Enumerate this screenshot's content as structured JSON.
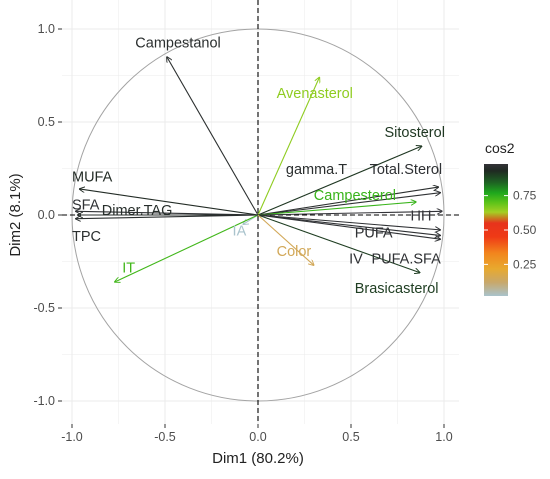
{
  "chart_data": {
    "type": "scatter",
    "subtype": "pca-variable-correlation-circle",
    "xlabel": "Dim1 (80.2%)",
    "ylabel": "Dim2 (8.1%)",
    "xlim": [
      -1.05,
      1.05
    ],
    "ylim": [
      -1.05,
      1.05
    ],
    "x_ticks": [
      "-1.0",
      "-0.5",
      "0.0",
      "0.5",
      "1.0"
    ],
    "y_ticks": [
      "-1.0",
      "-0.5",
      "0.0",
      "0.5",
      "1.0"
    ],
    "grid": true,
    "unit_circle": true,
    "legend": {
      "title": "cos2",
      "placement": "right",
      "ticks": [
        "0.75",
        "0.50",
        "0.25"
      ],
      "tick_values": [
        0.75,
        0.5,
        0.25
      ],
      "range": [
        0.02,
        0.98
      ],
      "gradient": [
        {
          "v": 0.02,
          "color": "#a9c3cc"
        },
        {
          "v": 0.12,
          "color": "#c8a86a"
        },
        {
          "v": 0.22,
          "color": "#e8a92e"
        },
        {
          "v": 0.33,
          "color": "#f2861d"
        },
        {
          "v": 0.45,
          "color": "#ef3a16"
        },
        {
          "v": 0.55,
          "color": "#e7331c"
        },
        {
          "v": 0.63,
          "color": "#a4cf24"
        },
        {
          "v": 0.7,
          "color": "#5cc319"
        },
        {
          "v": 0.77,
          "color": "#1fa81d"
        },
        {
          "v": 0.85,
          "color": "#1e5f23"
        },
        {
          "v": 0.93,
          "color": "#1f2a22"
        },
        {
          "v": 0.98,
          "color": "#333338"
        }
      ]
    },
    "variables": [
      {
        "name": "Campestanol",
        "x": -0.49,
        "y": 0.85,
        "cos2": 0.96
      },
      {
        "name": "Avenasterol",
        "x": 0.33,
        "y": 0.74,
        "cos2": 0.65
      },
      {
        "name": "Sitosterol",
        "x": 0.88,
        "y": 0.37,
        "cos2": 0.91
      },
      {
        "name": "gamma.T",
        "x": 0.97,
        "y": 0.15,
        "cos2": 0.96
      },
      {
        "name": "Total.Sterol",
        "x": 0.98,
        "y": 0.12,
        "cos2": 0.97
      },
      {
        "name": "Campesterol",
        "x": 0.85,
        "y": 0.07,
        "cos2": 0.74
      },
      {
        "name": "HH",
        "x": 0.99,
        "y": 0.02,
        "cos2": 0.98
      },
      {
        "name": "PUFA",
        "x": 0.98,
        "y": -0.08,
        "cos2": 0.97
      },
      {
        "name": "IV",
        "x": 0.98,
        "y": -0.11,
        "cos2": 0.97
      },
      {
        "name": "PUFA.SFA",
        "x": 0.98,
        "y": -0.13,
        "cos2": 0.97
      },
      {
        "name": "Brasicasterol",
        "x": 0.87,
        "y": -0.31,
        "cos2": 0.9
      },
      {
        "name": "Color",
        "x": 0.3,
        "y": -0.27,
        "cos2": 0.15
      },
      {
        "name": "IA",
        "x": -0.08,
        "y": -0.05,
        "cos2": 0.01
      },
      {
        "name": "IT",
        "x": -0.77,
        "y": -0.36,
        "cos2": 0.73
      },
      {
        "name": "MUFA",
        "x": -0.96,
        "y": 0.14,
        "cos2": 0.94
      },
      {
        "name": "SFA",
        "x": -0.98,
        "y": 0.02,
        "cos2": 0.97
      },
      {
        "name": "Dimer.TAG",
        "x": -0.97,
        "y": 0.0,
        "cos2": 0.95
      },
      {
        "name": "TPC",
        "x": -0.98,
        "y": -0.02,
        "cos2": 0.96
      }
    ],
    "labels": [
      {
        "text": "Campestanol",
        "x": -0.43,
        "y": 0.9,
        "anchor": "middle"
      },
      {
        "text": "Avenasterol",
        "x": 0.1,
        "y": 0.63,
        "anchor": "start"
      },
      {
        "text": "Sitosterol",
        "x": 0.68,
        "y": 0.42,
        "anchor": "start"
      },
      {
        "text": "gamma.T",
        "x": 0.15,
        "y": 0.22,
        "anchor": "start"
      },
      {
        "text": "Total.Sterol",
        "x": 0.6,
        "y": 0.22,
        "anchor": "start"
      },
      {
        "text": "Campesterol",
        "x": 0.3,
        "y": 0.08,
        "anchor": "start"
      },
      {
        "text": "HH",
        "x": 0.82,
        "y": -0.03,
        "anchor": "start"
      },
      {
        "text": "PUFA",
        "x": 0.52,
        "y": -0.12,
        "anchor": "start"
      },
      {
        "text": "IV",
        "x": 0.49,
        "y": -0.26,
        "anchor": "start"
      },
      {
        "text": "PUFA.SFA",
        "x": 0.61,
        "y": -0.26,
        "anchor": "start"
      },
      {
        "text": "Brasicasterol",
        "x": 0.52,
        "y": -0.42,
        "anchor": "start"
      },
      {
        "text": "Color",
        "x": 0.1,
        "y": -0.22,
        "anchor": "start"
      },
      {
        "text": "IA",
        "x": -0.1,
        "y": -0.11,
        "anchor": "middle"
      },
      {
        "text": "IT",
        "x": -0.73,
        "y": -0.31,
        "anchor": "start"
      },
      {
        "text": "MUFA",
        "x": -1.0,
        "y": 0.18,
        "anchor": "start"
      },
      {
        "text": "SFA",
        "x": -1.0,
        "y": 0.03,
        "anchor": "start"
      },
      {
        "text": "Dimer.TAG",
        "x": -0.84,
        "y": 0.0,
        "anchor": "start"
      },
      {
        "text": "TPC",
        "x": -1.0,
        "y": -0.14,
        "anchor": "start"
      }
    ]
  }
}
